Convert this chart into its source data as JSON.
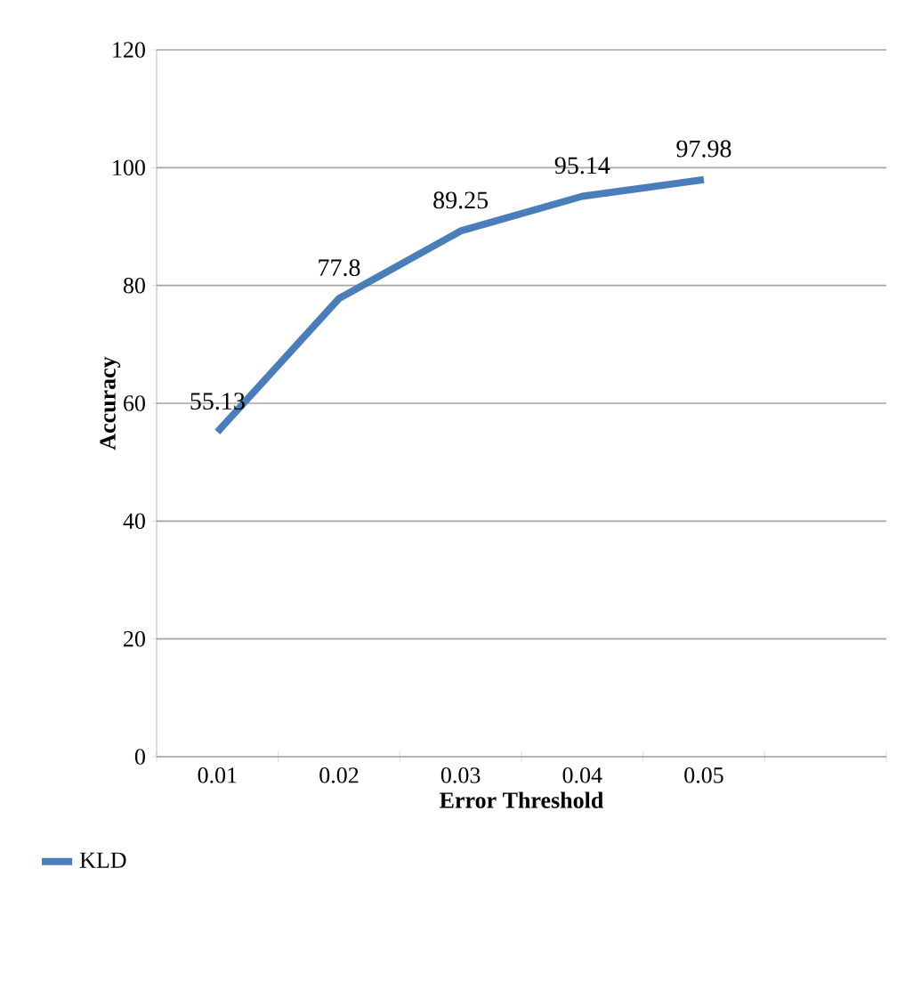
{
  "chart_data": {
    "type": "line",
    "xlabel": "Error Threshold",
    "ylabel": "Accuracy",
    "categories": [
      "0.01",
      "0.02",
      "0.03",
      "0.04",
      "0.05",
      null
    ],
    "series": [
      {
        "name": "KLD",
        "color": "#4a7ebb",
        "values": [
          55.13,
          77.8,
          89.25,
          95.14,
          97.98,
          null
        ]
      }
    ],
    "ylim": [
      0,
      120
    ],
    "yticks": [
      0,
      20,
      40,
      60,
      80,
      100,
      120
    ],
    "grid": "y",
    "legend": "bottom",
    "data_labels": true,
    "marker": "none"
  }
}
